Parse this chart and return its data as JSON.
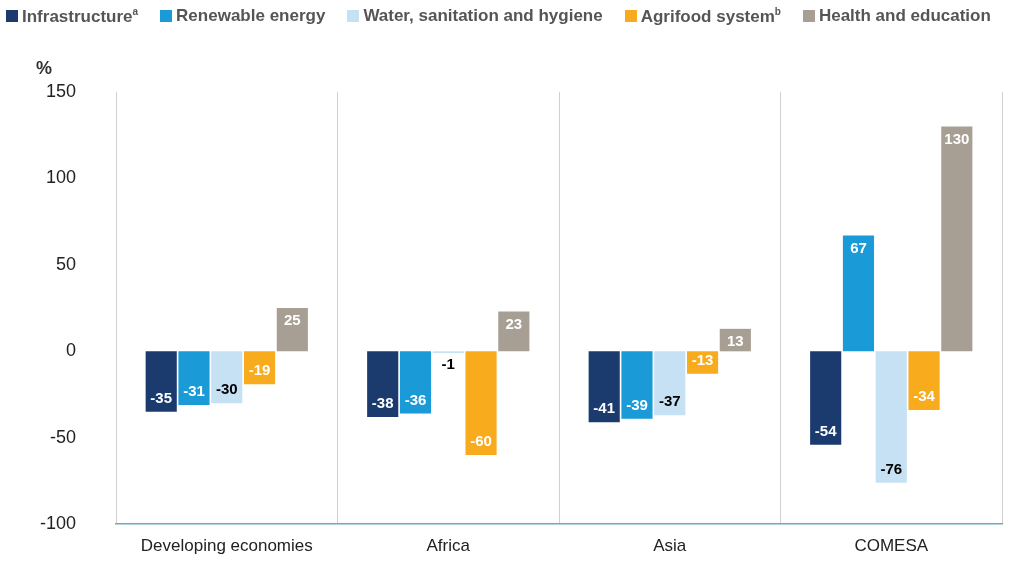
{
  "chart_data": {
    "type": "bar",
    "ylabel": "%",
    "categories": [
      "Developing economies",
      "Africa",
      "Asia",
      "COMESA"
    ],
    "series": [
      {
        "name": "Infrastructure$^{a}$",
        "color": "#1b3b6f",
        "values": [
          -35,
          -38,
          -41,
          -54
        ]
      },
      {
        "name": "Renewable energy",
        "color": "#1a9ad6",
        "values": [
          -31,
          -36,
          -39,
          67
        ]
      },
      {
        "name": "Water, sanitation and hygiene",
        "color": "#c6e1f3",
        "values": [
          -30,
          -1,
          -37,
          -76
        ]
      },
      {
        "name": "Agrifood system$^{b}$",
        "color": "#f8ab1d",
        "values": [
          -19,
          -60,
          -13,
          -34
        ]
      },
      {
        "name": "Health and education",
        "color": "#a79f93",
        "values": [
          25,
          23,
          13,
          130
        ]
      }
    ],
    "ylim": [
      -100,
      150
    ],
    "yticks": [
      -100,
      -50,
      0,
      50,
      100,
      150
    ],
    "grid": "x",
    "legend": "top",
    "data_labels": true
  }
}
